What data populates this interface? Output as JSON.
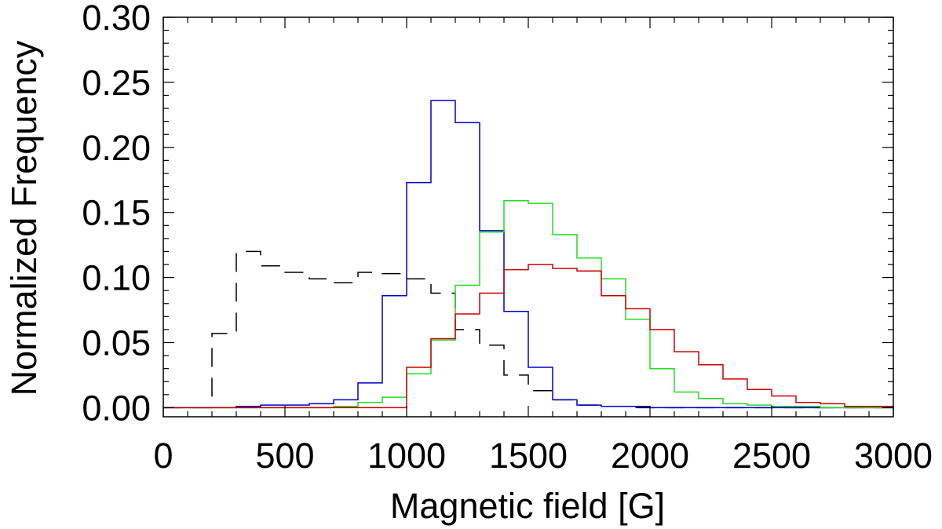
{
  "chart_data": {
    "type": "histogram-step",
    "xlabel": "Magnetic field [G]",
    "ylabel": "Normalized Frequency",
    "xlim": [
      0,
      3000
    ],
    "ylim": [
      -0.007,
      0.3
    ],
    "x_ticks": [
      0,
      500,
      1000,
      1500,
      2000,
      2500,
      3000
    ],
    "x_tick_labels": [
      "0",
      "500",
      "1000",
      "1500",
      "2000",
      "2500",
      "3000"
    ],
    "y_ticks": [
      0.0,
      0.05,
      0.1,
      0.15,
      0.2,
      0.25,
      0.3
    ],
    "y_tick_labels": [
      "0.00",
      "0.05",
      "0.10",
      "0.15",
      "0.20",
      "0.25",
      "0.30"
    ],
    "bin_width": 100,
    "bin_edges_start": 0,
    "series": [
      {
        "name": "black-dashed",
        "color": "#000000",
        "dashed": true,
        "values": [
          0,
          0,
          0.057,
          0.12,
          0.109,
          0.104,
          0.099,
          0.096,
          0.104,
          0.103,
          0.099,
          0.088,
          0.06,
          0.048,
          0.025,
          0.013,
          0.006,
          0.002,
          0.001,
          0,
          0,
          0,
          0,
          0,
          0,
          0,
          0,
          0,
          0,
          0
        ]
      },
      {
        "name": "blue",
        "color": "#0000cc",
        "dashed": false,
        "values": [
          0,
          0,
          0,
          0.001,
          0.002,
          0.002,
          0.003,
          0.006,
          0.019,
          0.086,
          0.173,
          0.236,
          0.219,
          0.136,
          0.074,
          0.031,
          0.006,
          0.002,
          0.001,
          0.001,
          0,
          0,
          0,
          0,
          0,
          0,
          0,
          0,
          0,
          0
        ]
      },
      {
        "name": "green",
        "color": "#22dd22",
        "dashed": false,
        "values": [
          0,
          0,
          0,
          0,
          0,
          0,
          0,
          0.001,
          0.004,
          0.008,
          0.026,
          0.052,
          0.094,
          0.135,
          0.159,
          0.157,
          0.133,
          0.115,
          0.099,
          0.068,
          0.03,
          0.012,
          0.007,
          0.003,
          0.002,
          0.001,
          0.001,
          0,
          0,
          0
        ]
      },
      {
        "name": "red",
        "color": "#cc0000",
        "dashed": false,
        "values": [
          0,
          0,
          0,
          0,
          0,
          0,
          0,
          0,
          0,
          0,
          0.031,
          0.053,
          0.072,
          0.088,
          0.106,
          0.11,
          0.107,
          0.105,
          0.086,
          0.076,
          0.06,
          0.043,
          0.033,
          0.022,
          0.014,
          0.009,
          0.004,
          0.003,
          0.001,
          0.001
        ]
      }
    ]
  }
}
